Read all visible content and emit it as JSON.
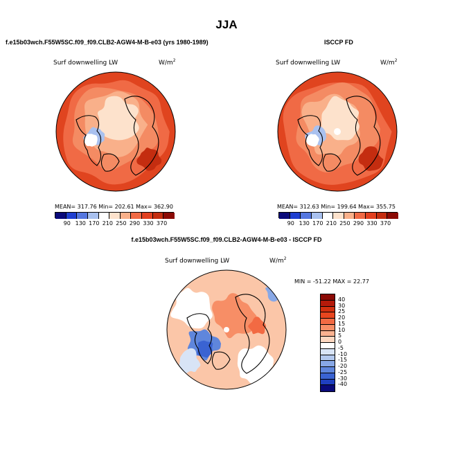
{
  "figure": {
    "title": "JJA",
    "bottom_title": "f.e15b03wch.F55W5SC.f09_f09.CLB2-AGW4-M-B-e03 - ISCCP FD"
  },
  "panels": [
    {
      "heading": "f.e15b03wch.F55W5SC.f09_f09.CLB2-AGW4-M-B-e03 (yrs 1980-1989)",
      "field": "Surf downwelling LW",
      "units_base": "W/m",
      "units_exp": "2",
      "stats": "MEAN= 317.76  Min= 202.61  Max= 362.90"
    },
    {
      "heading": "ISCCP FD",
      "field": "Surf downwelling LW",
      "units_base": "W/m",
      "units_exp": "2",
      "stats": "MEAN= 312.63  Min= 199.64  Max= 355.75"
    },
    {
      "heading": "",
      "field": "Surf downwelling LW",
      "units_base": "W/m",
      "units_exp": "2",
      "stats": "MIN = -51.22 MAX =  22.77"
    }
  ],
  "chart_data": [
    {
      "type": "heatmap",
      "projection": "north polar stereographic",
      "title": "f.e15b03wch.F55W5SC.f09_f09.CLB2-AGW4-M-B-e03 (yrs 1980-1989)",
      "variable": "Surf downwelling LW",
      "units": "W/m2",
      "mean": 317.76,
      "min": 202.61,
      "max": 362.9,
      "colorbar_levels": [
        90,
        130,
        170,
        210,
        250,
        290,
        330,
        370
      ],
      "colorbar_colors": [
        "#0a0a7a",
        "#1f3fd0",
        "#5577e0",
        "#a9c1ef",
        "#ffffff",
        "#fde2cc",
        "#f9b08a",
        "#f06a45",
        "#e2401f",
        "#c42d10",
        "#8b0a05"
      ]
    },
    {
      "type": "heatmap",
      "projection": "north polar stereographic",
      "title": "ISCCP FD",
      "variable": "Surf downwelling LW",
      "units": "W/m2",
      "mean": 312.63,
      "min": 199.64,
      "max": 355.75,
      "colorbar_levels": [
        90,
        130,
        170,
        210,
        250,
        290,
        330,
        370
      ],
      "colorbar_colors": [
        "#0a0a7a",
        "#1f3fd0",
        "#5577e0",
        "#a9c1ef",
        "#ffffff",
        "#fde2cc",
        "#f9b08a",
        "#f06a45",
        "#e2401f",
        "#c42d10",
        "#8b0a05"
      ]
    },
    {
      "type": "heatmap",
      "projection": "north polar stereographic",
      "title": "f.e15b03wch.F55W5SC.f09_f09.CLB2-AGW4-M-B-e03 - ISCCP FD",
      "variable": "Surf downwelling LW",
      "units": "W/m2",
      "min": -51.22,
      "max": 22.77,
      "colorbar_levels": [
        40,
        30,
        25,
        20,
        15,
        10,
        5,
        0,
        -5,
        -10,
        -15,
        -20,
        -25,
        -30,
        -40
      ],
      "colorbar_colors": [
        "#8b0a05",
        "#b41a0a",
        "#d2300f",
        "#e8461f",
        "#f26a43",
        "#f78e66",
        "#fbb290",
        "#fdd7c0",
        "#ffffff",
        "#d8e4f6",
        "#b2c8ee",
        "#88a8e6",
        "#5f86dc",
        "#3a63d2",
        "#1f3fbf",
        "#0a0a7a"
      ]
    }
  ]
}
